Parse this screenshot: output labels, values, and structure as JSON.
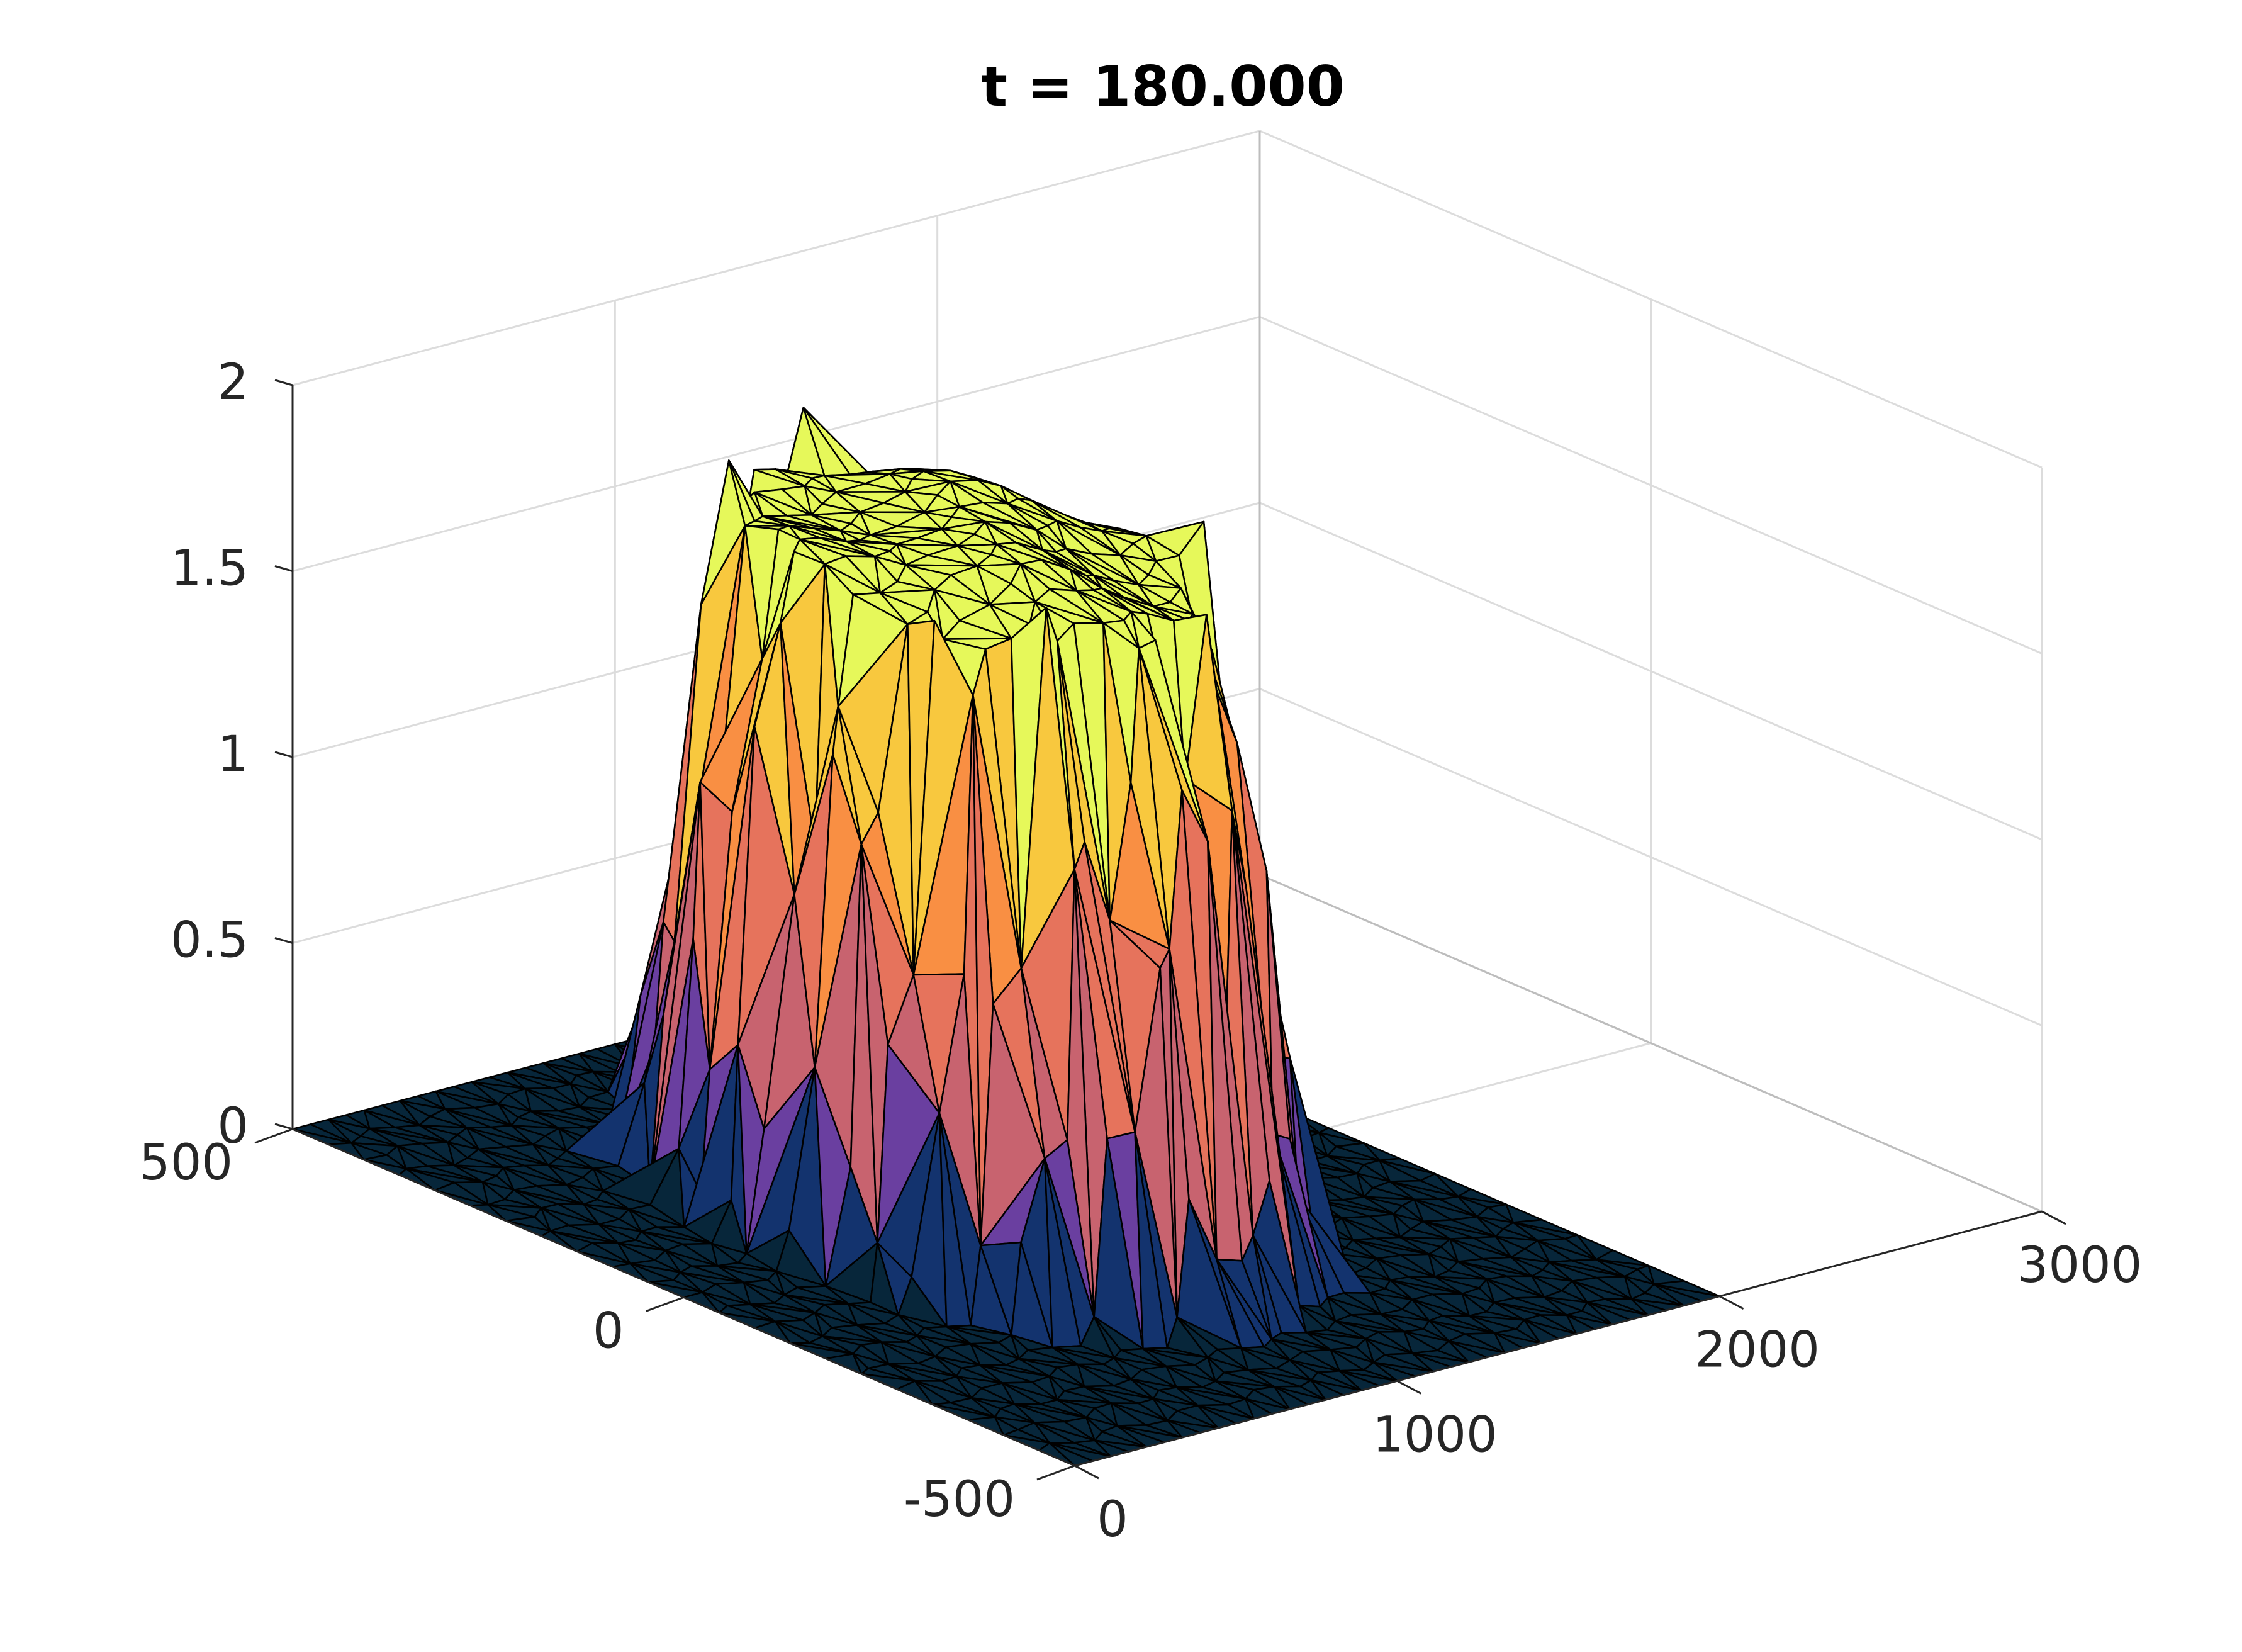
{
  "chart_data": {
    "type": "surface",
    "title": "t = 180.000",
    "xlabel": "",
    "ylabel": "",
    "zlabel": "",
    "xlim": [
      0,
      3000
    ],
    "ylim": [
      -500,
      500
    ],
    "zlim": [
      0,
      2
    ],
    "x_ticks": [
      "0",
      "1000",
      "2000",
      "3000"
    ],
    "y_ticks": [
      "-500",
      "0",
      "500"
    ],
    "z_ticks": [
      "0",
      "0.5",
      "1",
      "1.5",
      "2"
    ],
    "grid": true,
    "view": "3-D triangulated surface, azimuth -37.5, elevation 30",
    "surface_description": "Flat base at z = 0 over x 0 to 2000 and y -500 to 500, with a raised plateau around x 400 to 1500 and y -300 to 350 reaching z near 1.75 to 1.9",
    "plateau": {
      "x_range": [
        400,
        1500
      ],
      "y_range": [
        -300,
        350
      ],
      "peak_z": 1.9,
      "typical_top_z": 1.75
    },
    "colors": {
      "base": "#07263a",
      "low_blue": "#13336e",
      "purple": "#6a3fa0",
      "pink": "#c8636f",
      "salmon": "#e6735c",
      "orange": "#f98f43",
      "gold": "#f8c83e",
      "top_yellow": "#e6f85a"
    }
  }
}
